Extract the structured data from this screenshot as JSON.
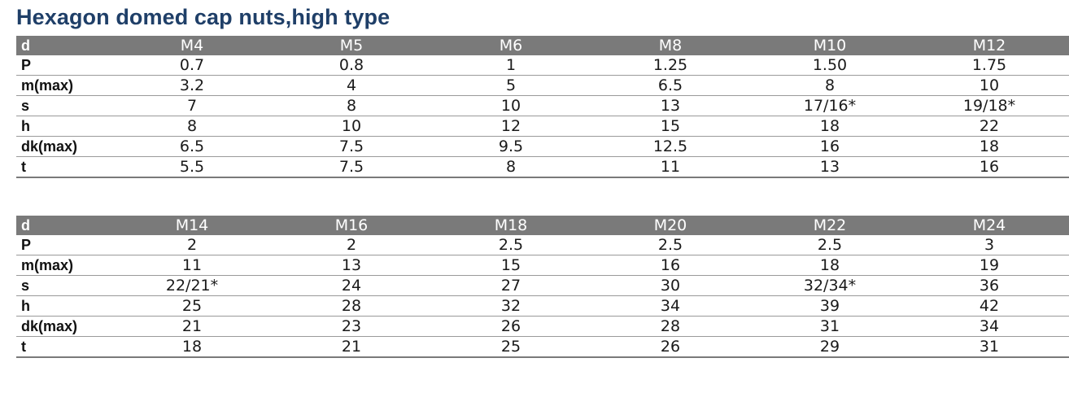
{
  "title": "Hexagon domed cap nuts,high type",
  "tables": [
    {
      "header": {
        "label": "d",
        "values": [
          "M4",
          "M5",
          "M6",
          "M8",
          "M10",
          "M12"
        ]
      },
      "rows": [
        {
          "label": "P",
          "values": [
            "0.7",
            "0.8",
            "1",
            "1.25",
            "1.50",
            "1.75"
          ]
        },
        {
          "label": "m(max)",
          "values": [
            "3.2",
            "4",
            "5",
            "6.5",
            "8",
            "10"
          ]
        },
        {
          "label": "s",
          "values": [
            "7",
            "8",
            "10",
            "13",
            "17/16*",
            "19/18*"
          ]
        },
        {
          "label": "h",
          "values": [
            "8",
            "10",
            "12",
            "15",
            "18",
            "22"
          ]
        },
        {
          "label": "dk(max)",
          "values": [
            "6.5",
            "7.5",
            "9.5",
            "12.5",
            "16",
            "18"
          ]
        },
        {
          "label": "t",
          "values": [
            "5.5",
            "7.5",
            "8",
            "11",
            "13",
            "16"
          ]
        }
      ]
    },
    {
      "header": {
        "label": "d",
        "values": [
          "M14",
          "M16",
          "M18",
          "M20",
          "M22",
          "M24"
        ]
      },
      "rows": [
        {
          "label": "P",
          "values": [
            "2",
            "2",
            "2.5",
            "2.5",
            "2.5",
            "3"
          ]
        },
        {
          "label": "m(max)",
          "values": [
            "11",
            "13",
            "15",
            "16",
            "18",
            "19"
          ]
        },
        {
          "label": "s",
          "values": [
            "22/21*",
            "24",
            "27",
            "30",
            "32/34*",
            "36"
          ]
        },
        {
          "label": "h",
          "values": [
            "25",
            "28",
            "32",
            "34",
            "39",
            "42"
          ]
        },
        {
          "label": "dk(max)",
          "values": [
            "21",
            "23",
            "26",
            "28",
            "31",
            "34"
          ]
        },
        {
          "label": "t",
          "values": [
            "18",
            "21",
            "25",
            "26",
            "29",
            "31"
          ]
        }
      ]
    }
  ]
}
